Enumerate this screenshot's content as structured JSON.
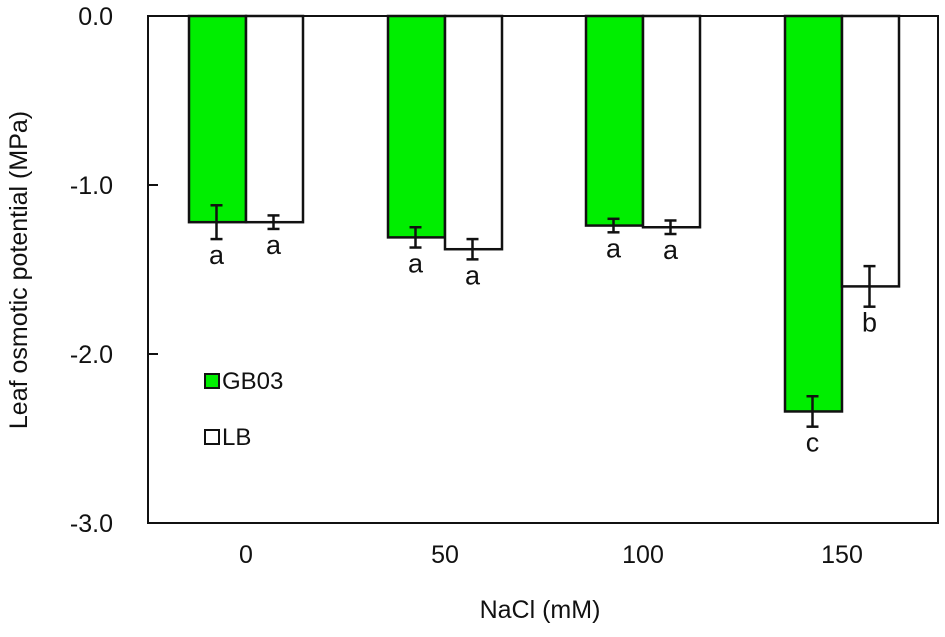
{
  "chart_data": {
    "type": "bar",
    "title": "",
    "xlabel": "NaCl (mM)",
    "ylabel": "Leaf osmotic potential (MPa)",
    "ylim": [
      -3.0,
      0.0
    ],
    "yticks": [
      "0.0",
      "-1.0",
      "-2.0",
      "-3.0"
    ],
    "grid": false,
    "legend_position": "inside lower-left",
    "categories": [
      "0",
      "50",
      "100",
      "150"
    ],
    "series": [
      {
        "name": "GB03",
        "color": "#00ee00",
        "values": [
          -1.22,
          -1.31,
          -1.24,
          -2.34
        ],
        "errors": [
          0.1,
          0.06,
          0.04,
          0.09
        ],
        "letters": [
          "a",
          "a",
          "a",
          "c"
        ]
      },
      {
        "name": "LB",
        "color": "#ffffff",
        "values": [
          -1.22,
          -1.38,
          -1.25,
          -1.6
        ],
        "errors": [
          0.04,
          0.06,
          0.04,
          0.12
        ],
        "letters": [
          "a",
          "a",
          "a",
          "b"
        ]
      }
    ]
  },
  "legend": {
    "items": [
      {
        "label": "GB03",
        "color": "#00ee00"
      },
      {
        "label": "LB",
        "color": "#ffffff"
      }
    ]
  }
}
